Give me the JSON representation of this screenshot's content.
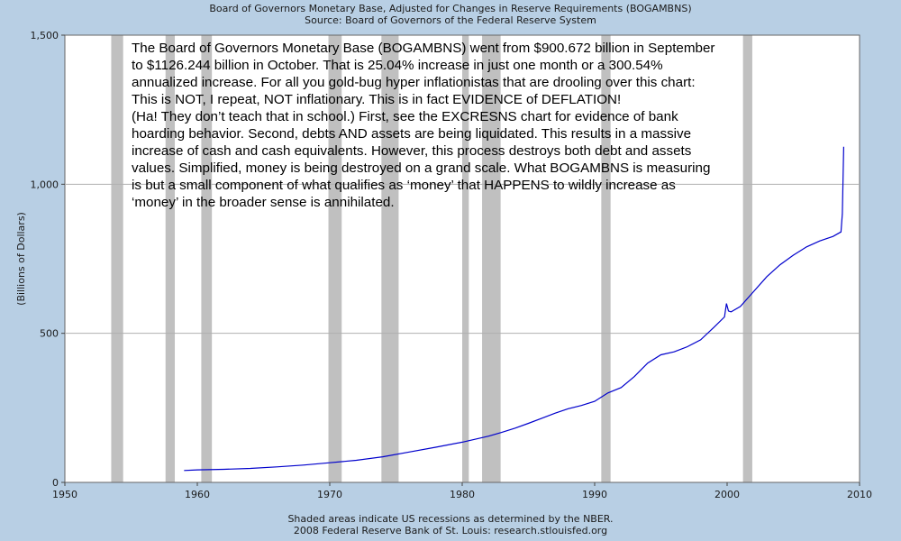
{
  "chart_data": {
    "type": "line",
    "title": "Board of Governors Monetary Base, Adjusted for Changes in Reserve Requirements (BOGAMBNS)",
    "subtitle": "Source: Board of Governors of the Federal Reserve System",
    "xlabel": "",
    "ylabel": "(Billions of Dollars)",
    "xlim": [
      1950,
      2010
    ],
    "ylim": [
      0,
      1500
    ],
    "x_ticks": [
      "1950",
      "1960",
      "1970",
      "1980",
      "1990",
      "2000",
      "2010"
    ],
    "y_ticks": [
      "0",
      "500",
      "1,000",
      "1,500"
    ],
    "grid": true,
    "line_color": "#0000cc",
    "recession_color": "#c0c0c0",
    "recessions": [
      [
        1953.5,
        1954.4
      ],
      [
        1957.6,
        1958.3
      ],
      [
        1960.3,
        1961.1
      ],
      [
        1969.9,
        1970.9
      ],
      [
        1973.9,
        1975.2
      ],
      [
        1980.0,
        1980.5
      ],
      [
        1981.5,
        1982.9
      ],
      [
        1990.5,
        1991.2
      ],
      [
        2001.2,
        2001.9
      ]
    ],
    "series": [
      {
        "x": [
          1959.0,
          1960.0,
          1962.0,
          1964.0,
          1966.0,
          1968.0,
          1970.0,
          1972.0,
          1974.0,
          1976.0,
          1978.0,
          1980.0,
          1981.0,
          1982.0,
          1983.0,
          1984.0,
          1985.0,
          1986.0,
          1987.0,
          1988.0,
          1989.0,
          1990.0,
          1991.0,
          1992.0,
          1993.0,
          1994.0,
          1995.0,
          1996.0,
          1997.0,
          1998.0,
          1999.0,
          1999.8,
          1999.95,
          2000.1,
          2000.3,
          2001.0,
          2002.0,
          2003.0,
          2004.0,
          2005.0,
          2006.0,
          2007.0,
          2008.0,
          2008.6,
          2008.7,
          2008.8
        ],
        "values": [
          40,
          42,
          44,
          47,
          52,
          58,
          66,
          74,
          86,
          102,
          118,
          135,
          145,
          155,
          168,
          182,
          198,
          215,
          232,
          247,
          258,
          272,
          300,
          318,
          355,
          400,
          428,
          438,
          455,
          478,
          520,
          555,
          600,
          575,
          572,
          590,
          640,
          690,
          730,
          762,
          790,
          810,
          825,
          840,
          901,
          1126
        ]
      }
    ],
    "annotation_lines": [
      "The Board of Governors Monetary Base (BOGAMBNS) went from $900.672 billion in September",
      "to $1126.244 billion in October. That is 25.04% increase in just one month or a 300.54%",
      "annualized increase. For all you gold-bug hyper inflationistas that are drooling over this chart:",
      "This is NOT, I repeat, NOT inflationary. This is in fact EVIDENCE of DEFLATION!",
      "(Ha! They don’t teach that in school.) First, see the EXCRESNS chart for evidence of bank",
      "hoarding behavior. Second, debts AND assets are being liquidated. This results in a massive",
      "increase of cash and cash equivalents. However, this process destroys both debt and assets",
      "values. Simplified, money is being destroyed on a grand scale. What BOGAMBNS is measuring",
      "is but a small component of what qualifies as ‘money’ that HAPPENS to wildly increase as",
      "‘money’ in the broader sense is annihilated."
    ],
    "footnote1": "Shaded areas indicate US recessions as determined by the NBER.",
    "footnote2": "2008 Federal Reserve Bank of St. Louis: research.stlouisfed.org"
  }
}
